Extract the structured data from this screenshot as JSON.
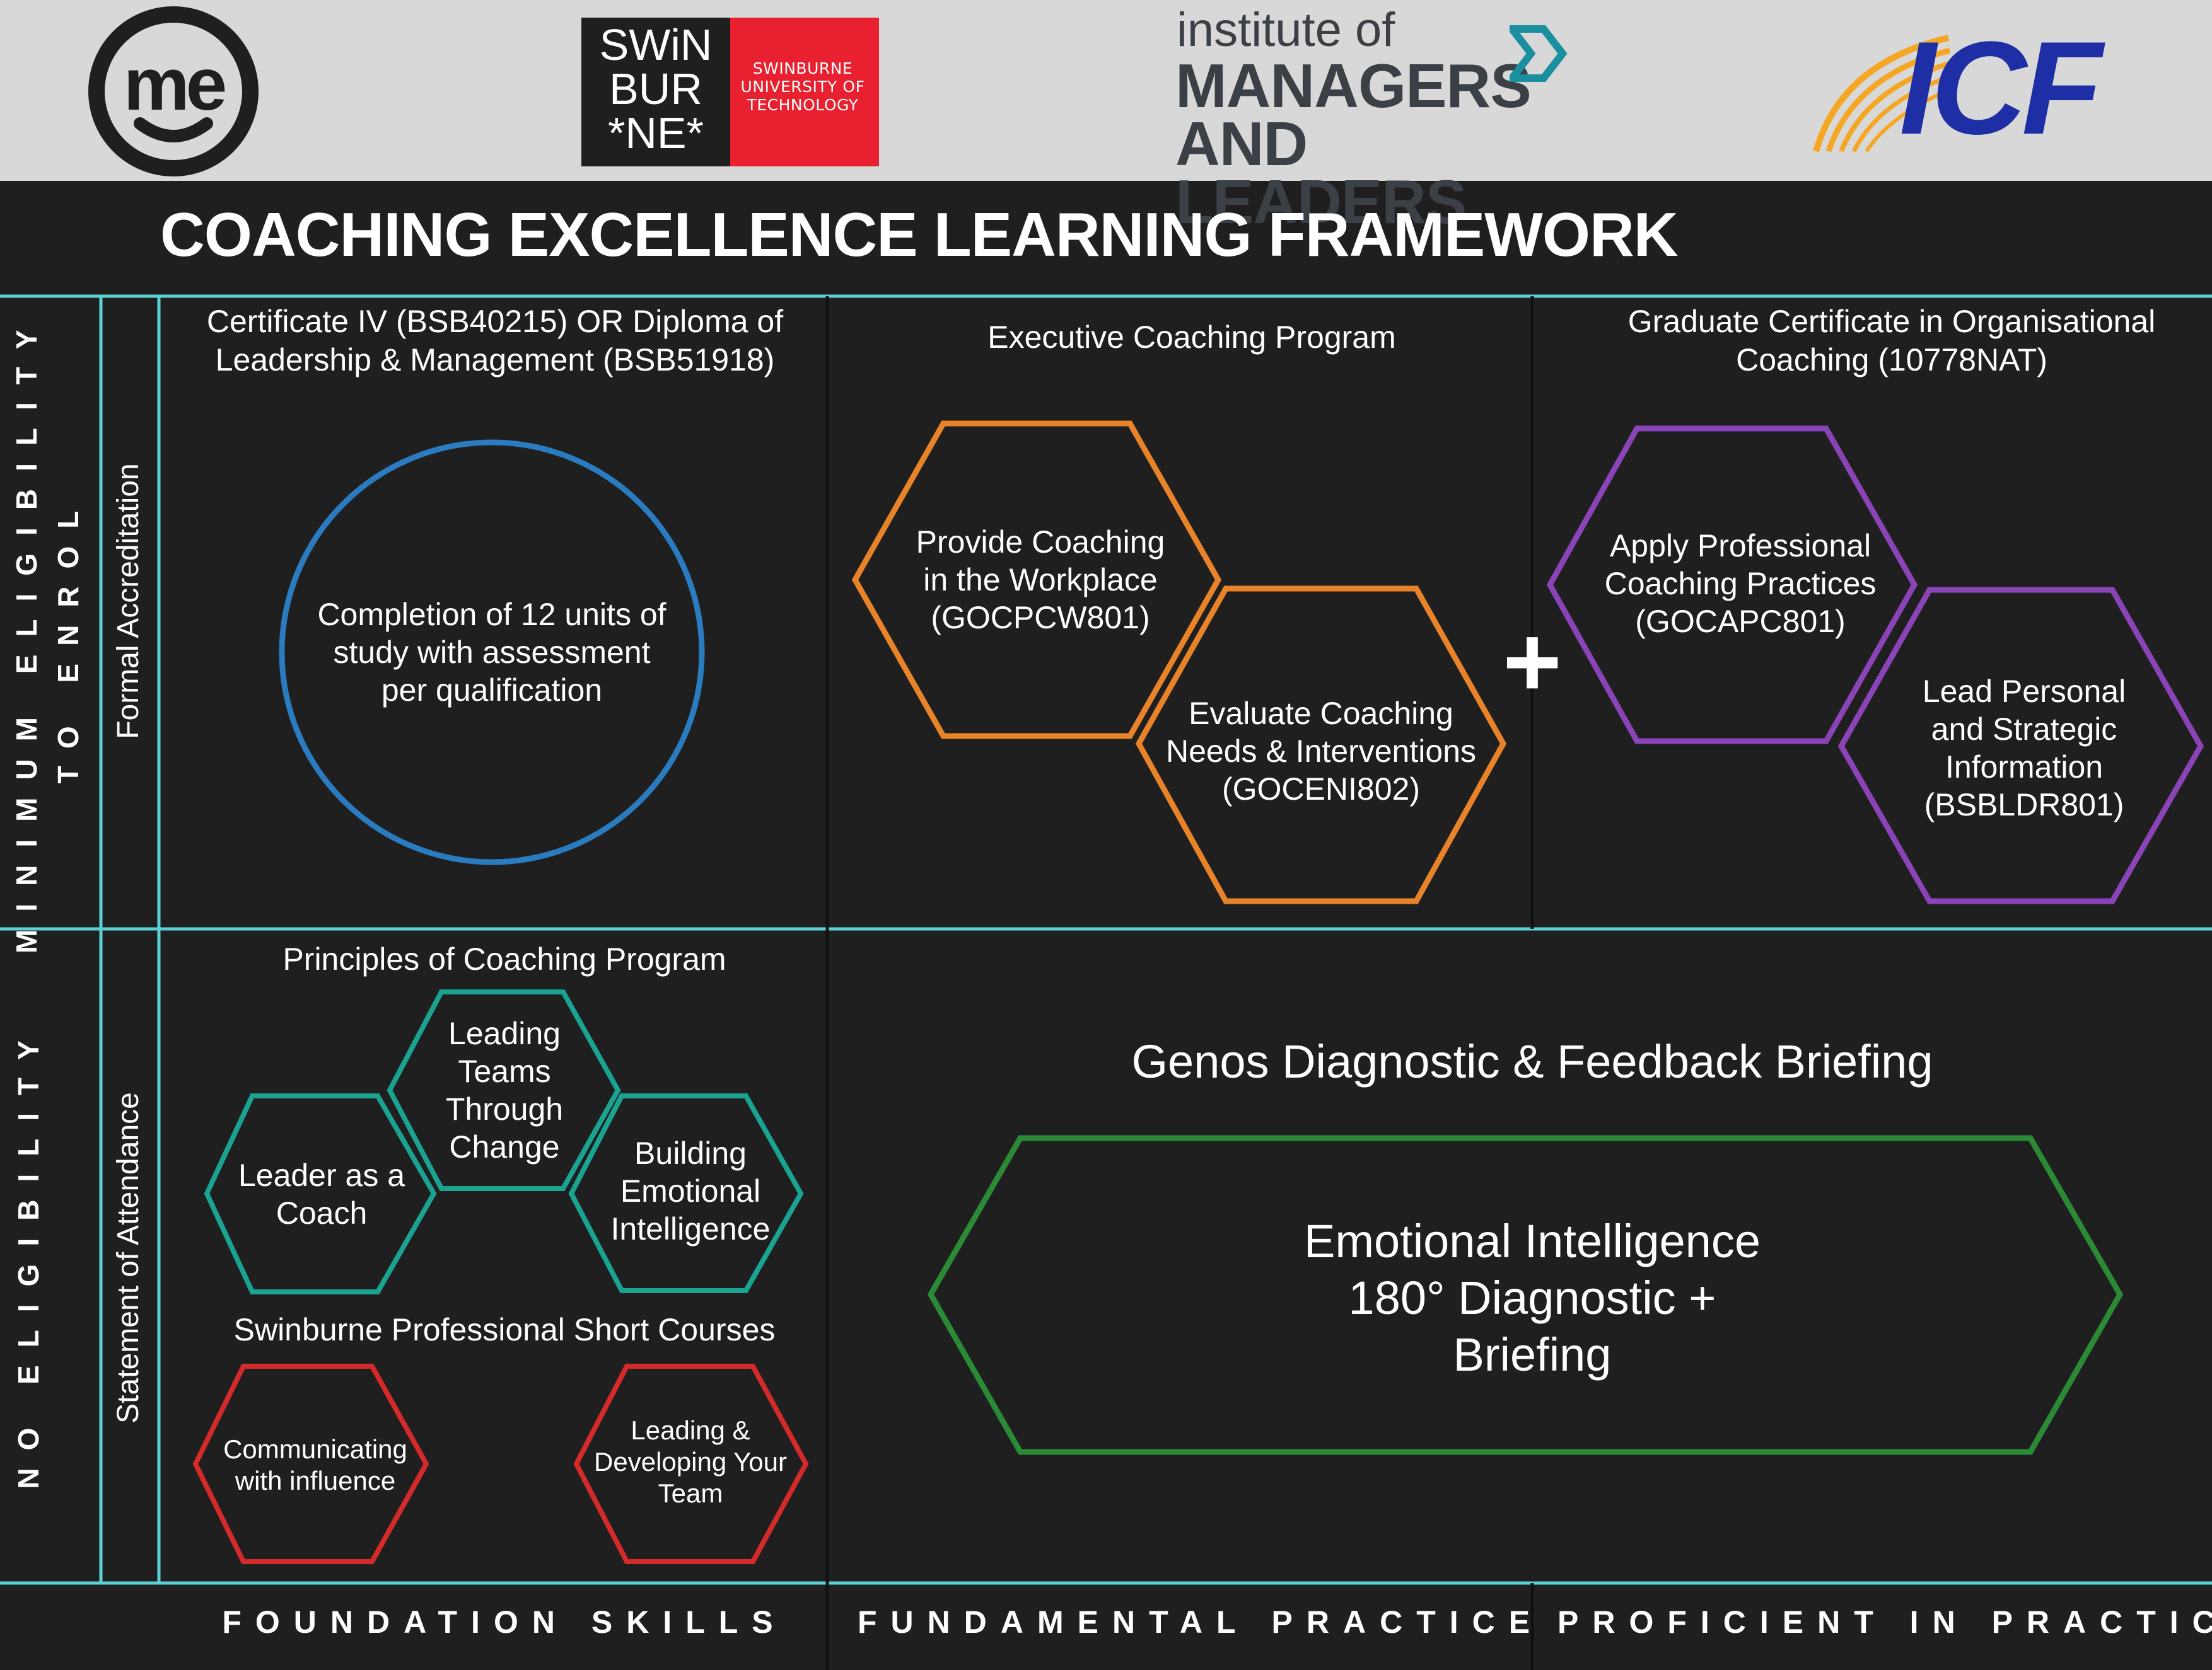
{
  "logos": {
    "me": {
      "text": "me"
    },
    "swinburne": {
      "wordmark": "SWiN BUR *NE*",
      "line1": "SWiN",
      "line2": "BUR",
      "line3": "*NE*",
      "name": "SWINBURNE UNIVERSITY OF TECHNOLOGY",
      "accent": "#e8202f"
    },
    "iml": {
      "top": "institute of",
      "bottom": "MANAGERS AND LEADERS",
      "accent": "#1a8fa0"
    },
    "icf": {
      "text": "ICF",
      "accent": "#f5a623",
      "brand": "#1e2fa5"
    }
  },
  "title": "COACHING EXCELLENCE LEARNING FRAMEWORK",
  "rows": {
    "top": {
      "eligibility": "MINIMUM ELIGIBILITY TO ENROL",
      "eligibility_line1": "MINIMUM ELIGIBILITY",
      "eligibility_line2": "TO ENROL",
      "type": "Formal Accreditation"
    },
    "bottom": {
      "eligibility": "NO ELIGIBILITY",
      "type": "Statement of Attendance"
    }
  },
  "top_cells": {
    "foundation": {
      "heading": "Certificate IV (BSB40215) OR Diploma of Leadership & Management (BSB51918)",
      "circle_text": "Completion of 12 units of study with assessment per qualification",
      "color": "#2a7bbf"
    },
    "fundamental": {
      "heading": "Executive Coaching Program",
      "hex1": "Provide Coaching in the Workplace (GOCPCW801)",
      "hex2": "Evaluate Coaching Needs & Interventions (GOCENI802)",
      "color": "#e8832a"
    },
    "plus": "+",
    "proficient": {
      "heading": "Graduate Certificate in Organisational Coaching (10778NAT)",
      "hex1": "Apply Professional Coaching Practices (GOCAPC801)",
      "hex2": "Lead Personal and Strategic Information (BSBLDR801)",
      "color": "#8a44b8"
    }
  },
  "bottom_cells": {
    "principles": {
      "heading": "Principles of Coaching Program",
      "hex_leader": "Leader as a Coach",
      "hex_teams": "Leading Teams Through Change",
      "hex_emotional": "Building Emotional Intelligence",
      "color": "#1aa391"
    },
    "short_courses": {
      "heading": "Swinburne Professional Short Courses",
      "hex_communicating": "Communicating with influence",
      "hex_developing": "Leading & Developing Your Team",
      "color": "#d42a2a"
    },
    "genos": {
      "heading": "Genos Diagnostic & Feedback Briefing",
      "shape_text": "Emotional Intelligence 180° Diagnostic + Briefing",
      "color": "#2b8a36"
    }
  },
  "footer": {
    "foundation": "FOUNDATION SKILLS",
    "fundamental": "FUNDAMENTAL PRACTICE",
    "proficient": "PROFICIENT IN PRACTICE"
  },
  "line_color": "#5ad3d6"
}
